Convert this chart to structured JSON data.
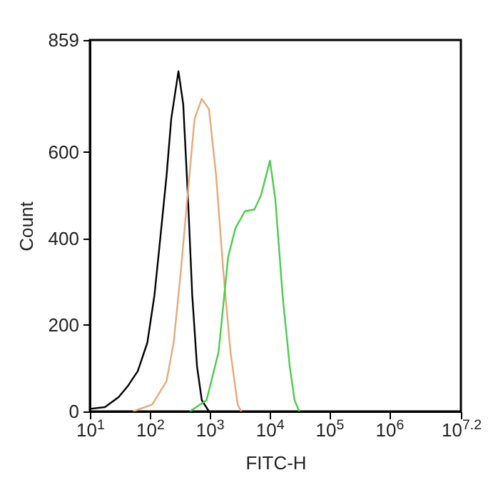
{
  "chart_data": {
    "type": "line",
    "xlabel": "FITC-H",
    "ylabel": "Count",
    "log": "x",
    "xlim": [
      10,
      15848932
    ],
    "ylim": [
      0,
      859
    ],
    "xticks": [
      {
        "value": 10,
        "label": "10$^{1}$"
      },
      {
        "value": 100,
        "label": "10$^{2}$"
      },
      {
        "value": 1000,
        "label": "10$^{3}$"
      },
      {
        "value": 10000,
        "label": "10$^{4}$"
      },
      {
        "value": 100000,
        "label": "10$^{5}$"
      },
      {
        "value": 1000000,
        "label": "10$^{6}$"
      },
      {
        "value": 15848932,
        "label": "10$^{7.2}$"
      }
    ],
    "yticks": [
      0,
      200,
      400,
      600,
      859
    ],
    "marker": "none",
    "line_style": "solid",
    "series": [
      {
        "color": "#000000",
        "x": [
          10,
          17.8,
          30.2,
          43.7,
          63.1,
          91.2,
          120,
          145,
          191,
          229,
          302,
          363,
          437,
          513,
          617,
          741,
          977
        ],
        "values": [
          6,
          10,
          33,
          60,
          93,
          159,
          269,
          380,
          545,
          677,
          787,
          710,
          489,
          269,
          104,
          26,
          0
        ]
      },
      {
        "color": "#e8a878",
        "x": [
          52.5,
          110,
          191,
          251,
          331,
          437,
          562,
          741,
          977,
          1288,
          1698,
          2239,
          2951,
          3388
        ],
        "values": [
          0,
          16,
          70,
          159,
          324,
          512,
          677,
          723,
          699,
          545,
          324,
          137,
          16,
          0
        ]
      },
      {
        "color": "#4ccc4c",
        "x": [
          468,
          891,
          1413,
          2042,
          2692,
          3890,
          5623,
          7244,
          10233,
          12589,
          16596,
          21878,
          26303,
          31623
        ],
        "values": [
          0,
          26,
          137,
          357,
          423,
          463,
          467,
          500,
          580,
          489,
          269,
          104,
          26,
          0
        ]
      }
    ]
  }
}
